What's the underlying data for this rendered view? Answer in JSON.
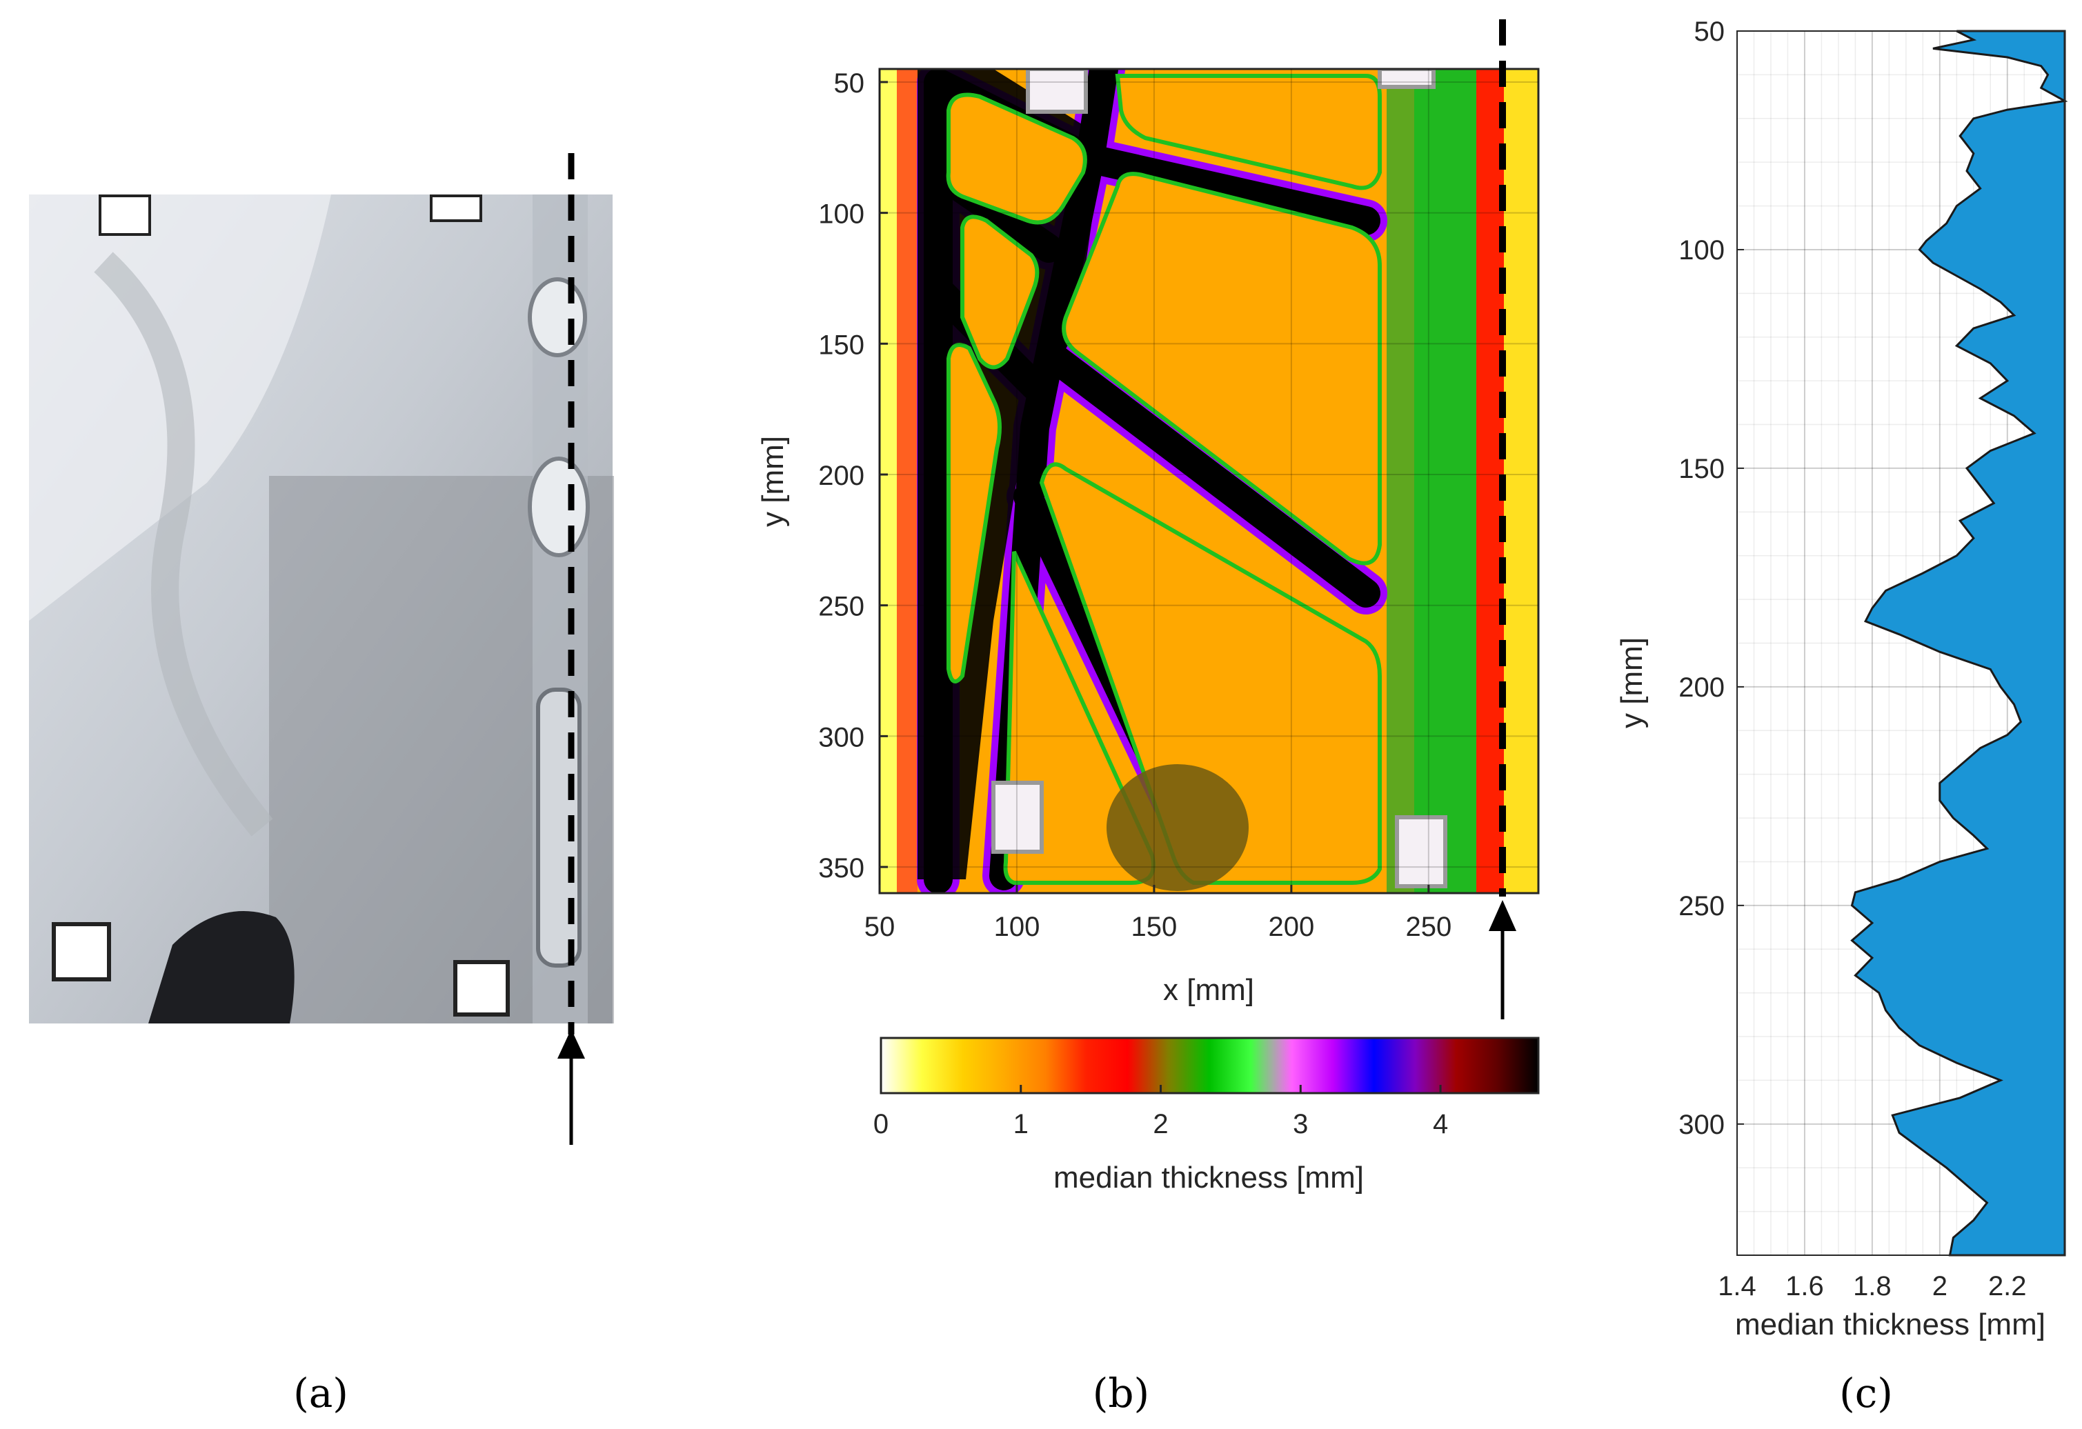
{
  "panels": {
    "a": {
      "label": "(a)"
    },
    "b": {
      "label": "(b)"
    },
    "c": {
      "label": "(c)"
    }
  },
  "chart_data": [
    {
      "panel": "b",
      "type": "heatmap",
      "xlabel": "x [mm]",
      "ylabel": "y [mm]",
      "xlim": [
        50,
        290
      ],
      "ylim": [
        360,
        45
      ],
      "xticks": [
        "50",
        "100",
        "150",
        "200",
        "250"
      ],
      "yticks": [
        "50",
        "100",
        "150",
        "200",
        "250",
        "300",
        "350"
      ],
      "grid": true,
      "colorbar": {
        "label": "median thickness [mm]",
        "range": [
          0,
          4.7
        ],
        "ticks": [
          "0",
          "1",
          "2",
          "3",
          "4"
        ],
        "colors": [
          "#ffffff",
          "#ffff40",
          "#ffd000",
          "#ffaa00",
          "#ff8000",
          "#ff2000",
          "#ff0000",
          "#808000",
          "#00c000",
          "#40ff40",
          "#ff60ff",
          "#c000ff",
          "#0000ff",
          "#8000c0",
          "#a00000",
          "#600000",
          "#000000"
        ]
      }
    },
    {
      "panel": "c",
      "type": "area",
      "xlabel": "median thickness [mm]",
      "ylabel": "y [mm]",
      "xlim": [
        1.4,
        2.37
      ],
      "ylim": [
        330,
        50
      ],
      "xticks": [
        "1.4",
        "1.6",
        "1.8",
        "2",
        "2.2"
      ],
      "yticks": [
        "50",
        "100",
        "150",
        "200",
        "250",
        "300"
      ],
      "grid": true,
      "color": "#1b95d6",
      "series": [
        {
          "y": [
            50,
            52,
            54,
            56,
            58,
            60,
            63,
            66,
            68,
            70,
            74,
            78,
            82,
            86,
            90,
            94,
            98,
            100,
            103,
            106,
            109,
            112,
            115,
            118,
            122,
            126,
            130,
            134,
            138,
            142,
            146,
            150,
            154,
            158,
            162,
            166,
            170,
            174,
            178,
            182,
            185,
            188,
            192,
            196,
            200,
            204,
            208,
            211,
            214,
            218,
            222,
            226,
            230,
            234,
            237,
            240,
            244,
            247,
            250,
            254,
            258,
            262,
            266,
            270,
            274,
            278,
            282,
            286,
            290,
            294,
            298,
            302,
            306,
            310,
            314,
            318,
            322,
            326,
            330
          ],
          "x": [
            2.05,
            2.1,
            1.98,
            2.2,
            2.3,
            2.32,
            2.3,
            2.38,
            2.2,
            2.1,
            2.06,
            2.1,
            2.08,
            2.12,
            2.05,
            2.02,
            1.96,
            1.94,
            1.98,
            2.05,
            2.12,
            2.18,
            2.22,
            2.1,
            2.05,
            2.15,
            2.2,
            2.12,
            2.22,
            2.28,
            2.15,
            2.08,
            2.12,
            2.16,
            2.06,
            2.1,
            2.05,
            1.95,
            1.84,
            1.8,
            1.78,
            1.88,
            2.0,
            2.15,
            2.18,
            2.22,
            2.24,
            2.2,
            2.12,
            2.06,
            2.0,
            2.0,
            2.04,
            2.1,
            2.14,
            2.0,
            1.88,
            1.75,
            1.74,
            1.8,
            1.74,
            1.8,
            1.75,
            1.82,
            1.84,
            1.88,
            1.94,
            2.05,
            2.18,
            2.06,
            1.86,
            1.88,
            1.95,
            2.02,
            2.08,
            2.14,
            2.1,
            2.04,
            2.03
          ]
        }
      ]
    }
  ]
}
